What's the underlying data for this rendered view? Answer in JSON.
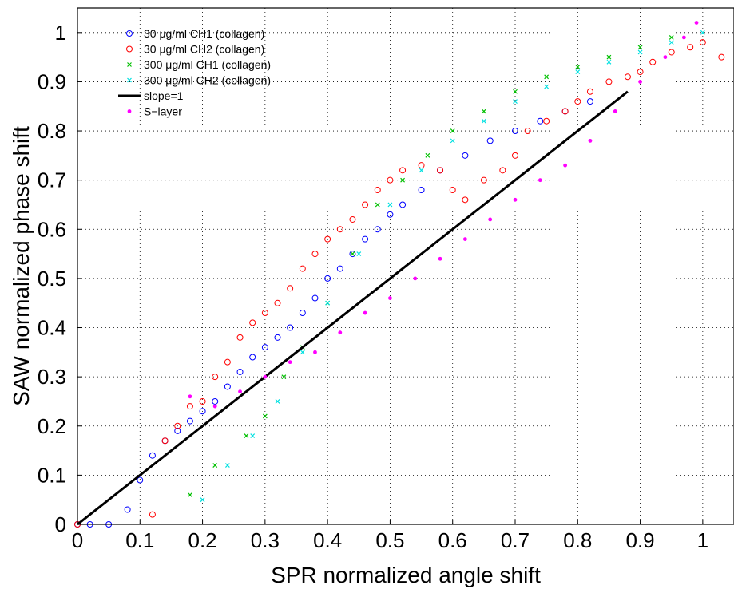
{
  "chart_data": {
    "type": "scatter",
    "xlabel": "SPR normalized angle shift",
    "ylabel": "SAW normalized phase shift",
    "xlim": [
      0,
      1.05
    ],
    "ylim": [
      0,
      1.05
    ],
    "xticks": [
      "0",
      "0.1",
      "0.2",
      "0.3",
      "0.4",
      "0.5",
      "0.6",
      "0.7",
      "0.8",
      "0.9",
      "1"
    ],
    "yticks": [
      "0",
      "0.1",
      "0.2",
      "0.3",
      "0.4",
      "0.5",
      "0.6",
      "0.7",
      "0.8",
      "0.9",
      "1"
    ],
    "grid": true,
    "legend_position": "top-left",
    "series": [
      {
        "name": "30 μg/ml CH1 (collagen)",
        "marker": "circle",
        "color": "#0000ff",
        "x": [
          0.0,
          0.02,
          0.05,
          0.08,
          0.1,
          0.12,
          0.14,
          0.16,
          0.18,
          0.2,
          0.22,
          0.24,
          0.26,
          0.28,
          0.3,
          0.32,
          0.34,
          0.36,
          0.38,
          0.4,
          0.42,
          0.44,
          0.46,
          0.48,
          0.5,
          0.52,
          0.55,
          0.58,
          0.62,
          0.66,
          0.7,
          0.74,
          0.78,
          0.82
        ],
        "y": [
          0.0,
          0.0,
          0.0,
          0.03,
          0.09,
          0.14,
          0.17,
          0.19,
          0.21,
          0.23,
          0.25,
          0.28,
          0.31,
          0.34,
          0.36,
          0.38,
          0.4,
          0.43,
          0.46,
          0.5,
          0.52,
          0.55,
          0.58,
          0.6,
          0.63,
          0.65,
          0.68,
          0.72,
          0.75,
          0.78,
          0.8,
          0.82,
          0.84,
          0.86
        ]
      },
      {
        "name": "30 μg/ml CH2 (collagen)",
        "marker": "circle",
        "color": "#ff0000",
        "x": [
          0.0,
          0.12,
          0.14,
          0.16,
          0.18,
          0.2,
          0.22,
          0.24,
          0.26,
          0.28,
          0.3,
          0.32,
          0.34,
          0.36,
          0.38,
          0.4,
          0.42,
          0.44,
          0.46,
          0.48,
          0.5,
          0.52,
          0.55,
          0.58,
          0.6,
          0.62,
          0.65,
          0.68,
          0.7,
          0.72,
          0.75,
          0.78,
          0.8,
          0.82,
          0.85,
          0.88,
          0.9,
          0.92,
          0.95,
          0.98,
          1.0,
          1.03
        ],
        "y": [
          0.0,
          0.02,
          0.17,
          0.2,
          0.24,
          0.25,
          0.3,
          0.33,
          0.38,
          0.41,
          0.43,
          0.45,
          0.48,
          0.52,
          0.55,
          0.58,
          0.6,
          0.62,
          0.65,
          0.68,
          0.7,
          0.72,
          0.73,
          0.72,
          0.68,
          0.66,
          0.7,
          0.72,
          0.75,
          0.8,
          0.82,
          0.84,
          0.86,
          0.88,
          0.9,
          0.91,
          0.92,
          0.94,
          0.96,
          0.97,
          0.98,
          0.95
        ]
      },
      {
        "name": "300 μg/ml CH1 (collagen)",
        "marker": "x",
        "color": "#00c000",
        "x": [
          0.18,
          0.22,
          0.27,
          0.3,
          0.33,
          0.36,
          0.4,
          0.44,
          0.48,
          0.52,
          0.56,
          0.6,
          0.65,
          0.7,
          0.75,
          0.8,
          0.85,
          0.9,
          0.95
        ],
        "y": [
          0.06,
          0.12,
          0.18,
          0.22,
          0.3,
          0.36,
          0.45,
          0.55,
          0.65,
          0.7,
          0.75,
          0.8,
          0.84,
          0.88,
          0.91,
          0.93,
          0.95,
          0.97,
          0.99
        ]
      },
      {
        "name": "300 μg/ml CH2 (collagen)",
        "marker": "x",
        "color": "#00e0e0",
        "x": [
          0.2,
          0.24,
          0.28,
          0.32,
          0.36,
          0.4,
          0.45,
          0.5,
          0.55,
          0.6,
          0.65,
          0.7,
          0.75,
          0.8,
          0.85,
          0.9,
          0.95,
          1.0
        ],
        "y": [
          0.05,
          0.12,
          0.18,
          0.25,
          0.35,
          0.45,
          0.55,
          0.65,
          0.72,
          0.78,
          0.82,
          0.86,
          0.89,
          0.92,
          0.94,
          0.96,
          0.98,
          1.0
        ]
      },
      {
        "name": "slope=1",
        "marker": "line",
        "color": "#000000",
        "x": [
          0.0,
          0.88
        ],
        "y": [
          0.0,
          0.88
        ]
      },
      {
        "name": "S−layer",
        "marker": "dot",
        "color": "#ff00ff",
        "x": [
          0.18,
          0.22,
          0.26,
          0.3,
          0.34,
          0.38,
          0.42,
          0.46,
          0.5,
          0.54,
          0.58,
          0.62,
          0.66,
          0.7,
          0.74,
          0.78,
          0.82,
          0.86,
          0.9,
          0.94,
          0.97,
          0.99
        ],
        "y": [
          0.26,
          0.24,
          0.27,
          0.3,
          0.33,
          0.35,
          0.39,
          0.43,
          0.46,
          0.5,
          0.54,
          0.58,
          0.62,
          0.66,
          0.7,
          0.73,
          0.78,
          0.84,
          0.9,
          0.95,
          0.99,
          1.02
        ]
      }
    ]
  }
}
